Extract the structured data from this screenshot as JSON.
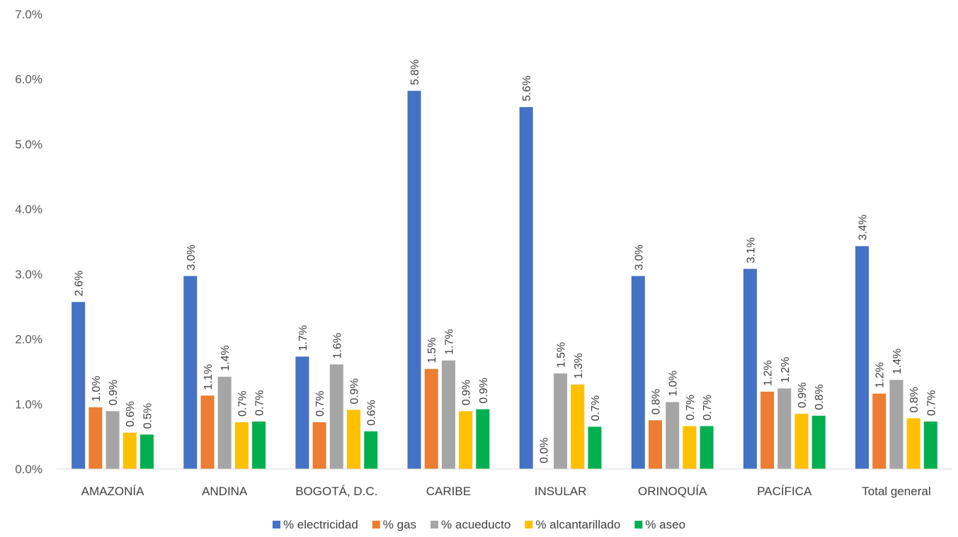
{
  "chart_data": {
    "type": "bar",
    "title": "",
    "xlabel": "",
    "ylabel": "",
    "ylim": [
      0,
      7
    ],
    "y_tick_step": 1,
    "y_tick_format": "percent_1dp",
    "grid": false,
    "legend_position": "bottom",
    "categories": [
      "AMAZONÍA",
      "ANDINA",
      "BOGOTÁ, D.C.",
      "CARIBE",
      "INSULAR",
      "ORINOQUÍA",
      "PACÍFICA",
      "Total general"
    ],
    "series": [
      {
        "name": "% electricidad",
        "color": "#4472C4",
        "values": [
          2.57,
          2.97,
          1.73,
          5.82,
          5.57,
          2.97,
          3.08,
          3.43
        ],
        "labels": [
          "2.6%",
          "3.0%",
          "1.7%",
          "5.8%",
          "5.6%",
          "3.0%",
          "3.1%",
          "3.4%"
        ]
      },
      {
        "name": "% gas",
        "color": "#ED7D31",
        "values": [
          0.95,
          1.13,
          0.72,
          1.54,
          0.0,
          0.75,
          1.19,
          1.16
        ],
        "labels": [
          "1.0%",
          "1.1%",
          "0.7%",
          "1.5%",
          "0.0%",
          "0.8%",
          "1.2%",
          "1.2%"
        ]
      },
      {
        "name": "% acueducto",
        "color": "#A5A5A5",
        "values": [
          0.89,
          1.42,
          1.61,
          1.67,
          1.47,
          1.03,
          1.24,
          1.37
        ],
        "labels": [
          "0.9%",
          "1.4%",
          "1.6%",
          "1.7%",
          "1.5%",
          "1.0%",
          "1.2%",
          "1.4%"
        ]
      },
      {
        "name": "% alcantarillado",
        "color": "#FFC000",
        "values": [
          0.56,
          0.72,
          0.91,
          0.89,
          1.3,
          0.66,
          0.85,
          0.78
        ],
        "labels": [
          "0.6%",
          "0.7%",
          "0.9%",
          "0.9%",
          "1.3%",
          "0.7%",
          "0.9%",
          "0.8%"
        ]
      },
      {
        "name": "% aseo",
        "color": "#00B050",
        "values": [
          0.53,
          0.73,
          0.58,
          0.92,
          0.65,
          0.66,
          0.82,
          0.73
        ],
        "labels": [
          "0.5%",
          "0.7%",
          "0.6%",
          "0.9%",
          "0.7%",
          "0.7%",
          "0.8%",
          "0.7%"
        ]
      }
    ]
  }
}
